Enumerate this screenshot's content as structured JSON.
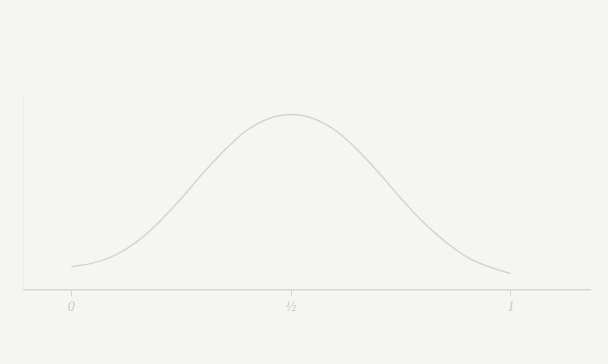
{
  "chart_data": {
    "type": "line",
    "x": [
      0,
      0.05,
      0.1,
      0.15,
      0.2,
      0.25,
      0.3,
      0.35,
      0.4,
      0.45,
      0.5,
      0.55,
      0.6,
      0.65,
      0.7,
      0.75,
      0.8,
      0.85,
      0.9,
      0.95,
      1
    ],
    "values": [
      0.12,
      0.14,
      0.18,
      0.25,
      0.35,
      0.47,
      0.6,
      0.72,
      0.82,
      0.88,
      0.9,
      0.88,
      0.82,
      0.72,
      0.6,
      0.47,
      0.35,
      0.25,
      0.17,
      0.12,
      0.085
    ],
    "color": "#d4d4d2",
    "xlim": [
      -0.11,
      1.18
    ],
    "xticks": [
      0,
      {
        "value": 0.5,
        "label": "½"
      },
      1
    ],
    "ylim": [
      0,
      1
    ],
    "yticks": [],
    "tick_labels": "x",
    "grid": false
  }
}
